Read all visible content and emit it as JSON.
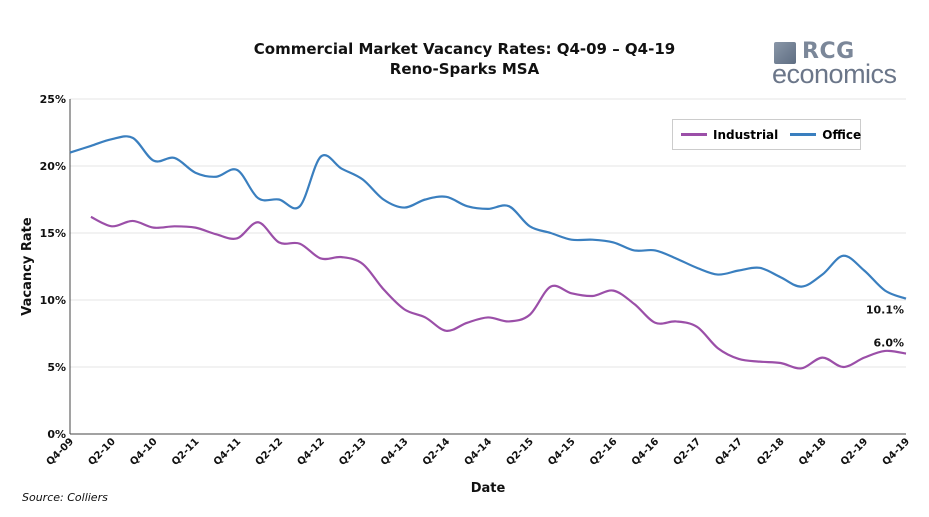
{
  "chart_data": {
    "type": "line",
    "title": "Commercial Market Vacancy Rates: Q4-09 – Q4-19",
    "subtitle": "Reno-Sparks MSA",
    "xlabel": "Date",
    "ylabel": "Vacancy Rate",
    "ylim": [
      0,
      25
    ],
    "yticks": [
      "0%",
      "5%",
      "10%",
      "15%",
      "20%",
      "25%"
    ],
    "grid": true,
    "legend_position": "top-right",
    "x": [
      "Q4-09",
      "Q1-10",
      "Q2-10",
      "Q3-10",
      "Q4-10",
      "Q1-11",
      "Q2-11",
      "Q3-11",
      "Q4-11",
      "Q1-12",
      "Q2-12",
      "Q3-12",
      "Q4-12",
      "Q1-13",
      "Q2-13",
      "Q3-13",
      "Q4-13",
      "Q1-14",
      "Q2-14",
      "Q3-14",
      "Q4-14",
      "Q1-15",
      "Q2-15",
      "Q3-15",
      "Q4-15",
      "Q1-16",
      "Q2-16",
      "Q3-16",
      "Q4-16",
      "Q1-17",
      "Q2-17",
      "Q3-17",
      "Q4-17",
      "Q1-18",
      "Q2-18",
      "Q3-18",
      "Q4-18",
      "Q1-19",
      "Q2-19",
      "Q3-19",
      "Q4-19"
    ],
    "xtick_labels": [
      "Q4-09",
      "Q2-10",
      "Q4-10",
      "Q2-11",
      "Q4-11",
      "Q2-12",
      "Q4-12",
      "Q2-13",
      "Q4-13",
      "Q2-14",
      "Q4-14",
      "Q2-15",
      "Q4-15",
      "Q2-16",
      "Q4-16",
      "Q2-17",
      "Q4-17",
      "Q2-18",
      "Q4-18",
      "Q2-19",
      "Q4-19"
    ],
    "series": [
      {
        "name": "Industrial",
        "color": "#9b4fa8",
        "end_label": "6.0%",
        "values": [
          null,
          16.2,
          15.5,
          15.9,
          15.4,
          15.5,
          15.4,
          14.9,
          14.6,
          15.8,
          14.3,
          14.2,
          13.1,
          13.2,
          12.7,
          10.8,
          9.3,
          8.7,
          7.7,
          8.3,
          8.7,
          8.4,
          8.9,
          11.0,
          10.5,
          10.3,
          10.7,
          9.7,
          8.3,
          8.4,
          8.0,
          6.4,
          5.6,
          5.4,
          5.3,
          4.9,
          5.7,
          5.0,
          5.7,
          6.2,
          6.0
        ]
      },
      {
        "name": "Office",
        "color": "#3a7fbf",
        "end_label": "10.1%",
        "values": [
          21.0,
          21.5,
          22.0,
          22.1,
          20.4,
          20.6,
          19.5,
          19.2,
          19.7,
          17.6,
          17.5,
          17.0,
          20.7,
          19.8,
          19.0,
          17.5,
          16.9,
          17.5,
          17.7,
          17.0,
          16.8,
          17.0,
          15.5,
          15.0,
          14.5,
          14.5,
          14.3,
          13.7,
          13.7,
          13.1,
          12.4,
          11.9,
          12.2,
          12.4,
          11.7,
          11.0,
          11.9,
          13.3,
          12.2,
          10.7,
          10.1
        ]
      }
    ],
    "source": "Source: Colliers"
  },
  "logo": {
    "line1": "RCG",
    "line2": "economics"
  }
}
